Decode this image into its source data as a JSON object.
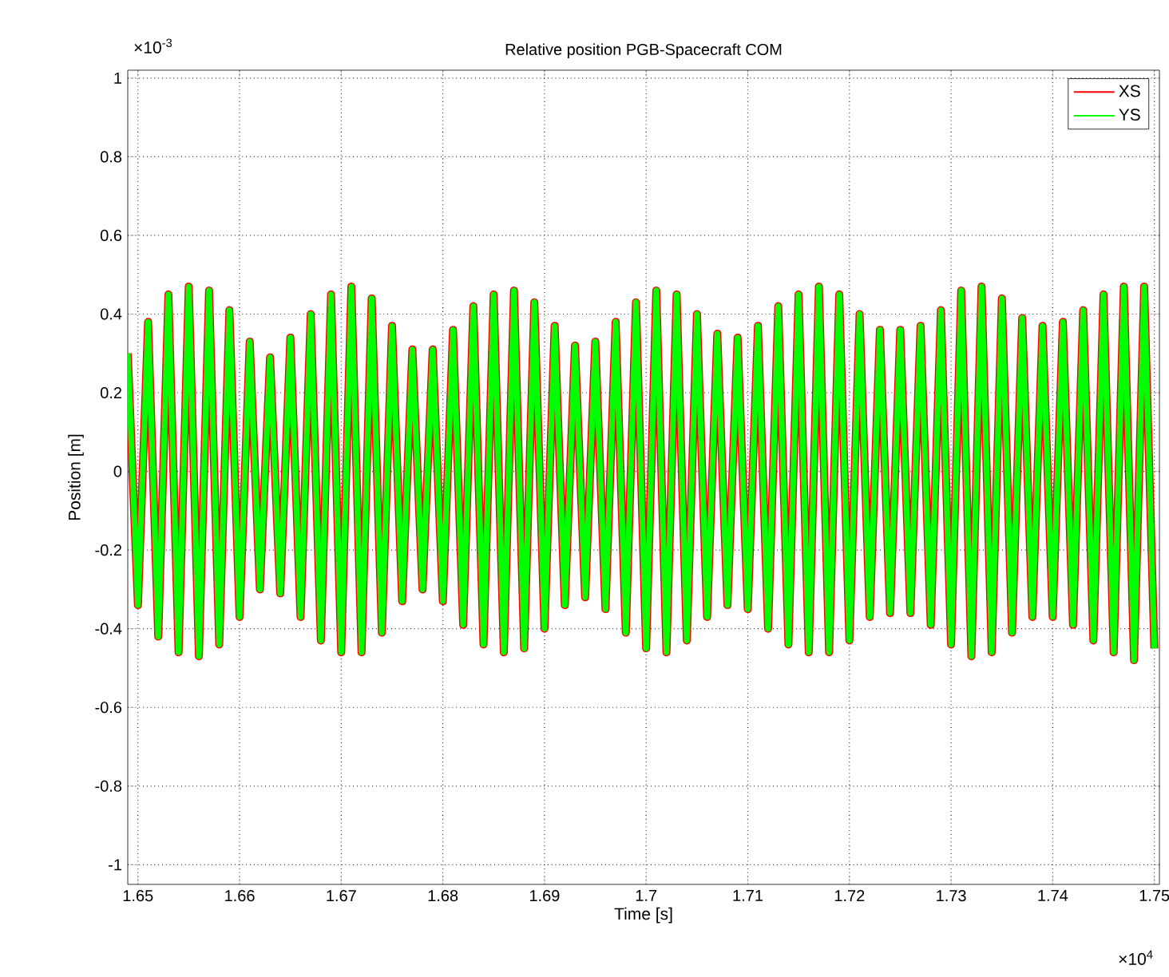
{
  "chart_data": {
    "type": "line",
    "title": "Relative position PGB-Spacecraft COM",
    "xlabel": "Time [s]",
    "ylabel": "Position [m]",
    "annotations": [
      "×10$^{-3}$",
      "×10$^{4}$"
    ],
    "x": [
      1.649,
      1.65,
      1.651,
      1.652,
      1.653,
      1.654,
      1.655,
      1.656,
      1.657,
      1.658,
      1.659,
      1.66,
      1.661,
      1.662,
      1.663,
      1.664,
      1.665,
      1.666,
      1.667,
      1.668,
      1.669,
      1.67,
      1.671,
      1.672,
      1.673,
      1.674,
      1.675,
      1.676,
      1.677,
      1.678,
      1.679,
      1.68,
      1.681,
      1.682,
      1.683,
      1.684,
      1.685,
      1.686,
      1.687,
      1.688,
      1.689,
      1.69,
      1.691,
      1.692,
      1.693,
      1.694,
      1.695,
      1.696,
      1.697,
      1.698,
      1.699,
      1.7,
      1.701,
      1.702,
      1.703,
      1.704,
      1.705,
      1.706,
      1.707,
      1.708,
      1.709,
      1.71,
      1.711,
      1.712,
      1.713,
      1.714,
      1.715,
      1.716,
      1.717,
      1.718,
      1.719,
      1.72,
      1.721,
      1.722,
      1.723,
      1.724,
      1.725,
      1.726,
      1.727,
      1.728,
      1.729,
      1.73,
      1.731,
      1.732,
      1.733,
      1.734,
      1.735,
      1.736,
      1.737,
      1.738,
      1.739,
      1.74,
      1.741,
      1.742,
      1.743,
      1.744,
      1.745,
      1.746,
      1.747,
      1.748,
      1.749,
      1.75
    ],
    "series": [
      {
        "name": "XS",
        "color": "#ff0000",
        "values": [
          0.3,
          -0.34,
          0.38,
          -0.42,
          0.45,
          -0.46,
          0.47,
          -0.47,
          0.46,
          -0.44,
          0.41,
          -0.37,
          0.33,
          -0.3,
          0.29,
          -0.31,
          0.34,
          -0.37,
          0.4,
          -0.43,
          0.45,
          -0.46,
          0.47,
          -0.46,
          0.44,
          -0.41,
          0.37,
          -0.33,
          0.31,
          -0.3,
          0.31,
          -0.33,
          0.36,
          -0.39,
          0.42,
          -0.44,
          0.45,
          -0.46,
          0.46,
          -0.45,
          0.43,
          -0.4,
          0.37,
          -0.34,
          0.32,
          -0.32,
          0.33,
          -0.35,
          0.38,
          -0.41,
          0.43,
          -0.45,
          0.46,
          -0.46,
          0.45,
          -0.43,
          0.4,
          -0.37,
          0.35,
          -0.34,
          0.34,
          -0.35,
          0.37,
          -0.4,
          0.42,
          -0.44,
          0.45,
          -0.46,
          0.47,
          -0.46,
          0.45,
          -0.43,
          0.4,
          -0.37,
          0.36,
          -0.36,
          0.36,
          -0.36,
          0.37,
          -0.39,
          0.41,
          -0.44,
          0.46,
          -0.47,
          0.47,
          -0.46,
          0.44,
          -0.41,
          0.39,
          -0.37,
          0.37,
          -0.37,
          0.38,
          -0.39,
          0.41,
          -0.43,
          0.45,
          -0.46,
          0.47,
          -0.48,
          0.47,
          -0.45
        ]
      },
      {
        "name": "YS",
        "color": "#00ff00",
        "values": [
          0.3,
          -0.34,
          0.38,
          -0.42,
          0.45,
          -0.46,
          0.47,
          -0.47,
          0.46,
          -0.44,
          0.41,
          -0.37,
          0.33,
          -0.3,
          0.29,
          -0.31,
          0.34,
          -0.37,
          0.4,
          -0.43,
          0.45,
          -0.46,
          0.47,
          -0.46,
          0.44,
          -0.41,
          0.37,
          -0.33,
          0.31,
          -0.3,
          0.31,
          -0.33,
          0.36,
          -0.39,
          0.42,
          -0.44,
          0.45,
          -0.46,
          0.46,
          -0.45,
          0.43,
          -0.4,
          0.37,
          -0.34,
          0.32,
          -0.32,
          0.33,
          -0.35,
          0.38,
          -0.41,
          0.43,
          -0.45,
          0.46,
          -0.46,
          0.45,
          -0.43,
          0.4,
          -0.37,
          0.35,
          -0.34,
          0.34,
          -0.35,
          0.37,
          -0.4,
          0.42,
          -0.44,
          0.45,
          -0.46,
          0.47,
          -0.46,
          0.45,
          -0.43,
          0.4,
          -0.37,
          0.36,
          -0.36,
          0.36,
          -0.36,
          0.37,
          -0.39,
          0.41,
          -0.44,
          0.46,
          -0.47,
          0.47,
          -0.46,
          0.44,
          -0.41,
          0.39,
          -0.37,
          0.37,
          -0.37,
          0.38,
          -0.39,
          0.41,
          -0.43,
          0.45,
          -0.46,
          0.47,
          -0.48,
          0.47,
          -0.45
        ]
      }
    ],
    "xlim": [
      1.649,
      1.7505
    ],
    "ylim": [
      -1.05,
      1.02
    ],
    "xticks": [
      1.65,
      1.66,
      1.67,
      1.68,
      1.69,
      1.7,
      1.71,
      1.72,
      1.73,
      1.74,
      1.75
    ],
    "yticks": [
      -1,
      -0.8,
      -0.6,
      -0.4,
      -0.2,
      0,
      0.2,
      0.4,
      0.6,
      0.8,
      1
    ],
    "grid": true,
    "legend": "top right"
  }
}
